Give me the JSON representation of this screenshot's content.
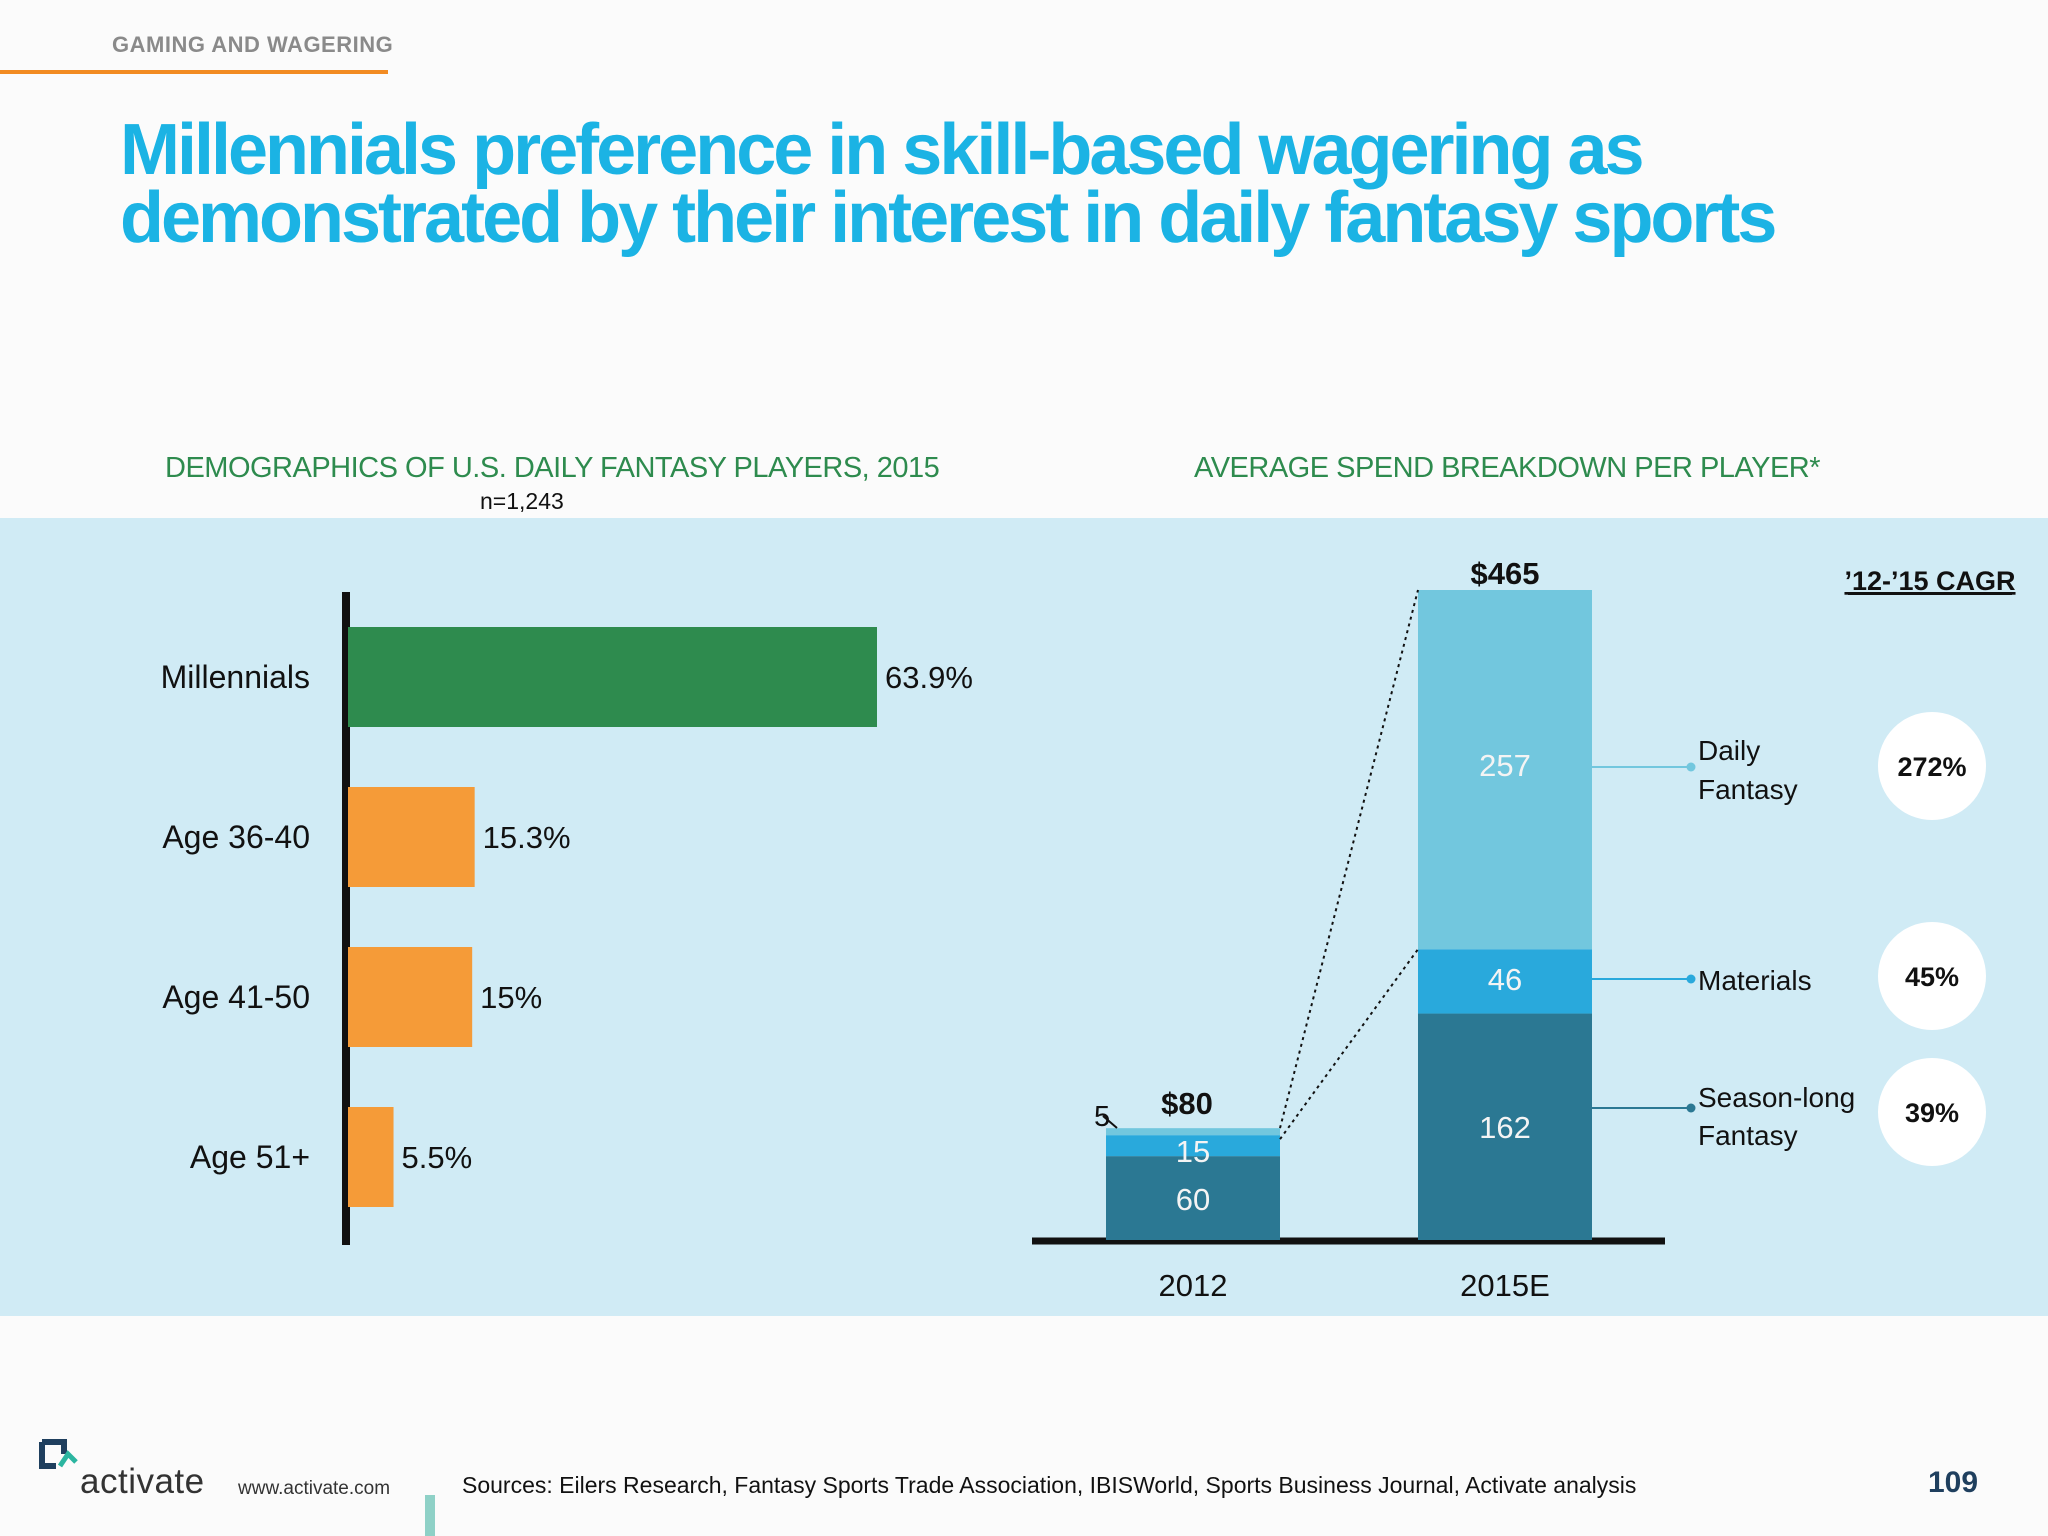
{
  "header": {
    "section_tag": "GAMING AND WAGERING",
    "title": "Millennials preference in skill-based wagering as demonstrated by their interest in daily fantasy sports"
  },
  "colors": {
    "title": "#1bb3e4",
    "accent_orange": "#f59b38",
    "accent_green": "#2e8b4e",
    "panel_bg": "#d0ebf5",
    "daily_fantasy": "#72c7de",
    "materials": "#29a9dc",
    "season_long": "#2b7893"
  },
  "chart_data": [
    {
      "type": "bar",
      "orientation": "horizontal",
      "title": "DEMOGRAPHICS OF U.S. DAILY FANTASY PLAYERS, 2015",
      "subtitle": "n=1,243",
      "categories": [
        "Millennials",
        "Age 36-40",
        "Age 41-50",
        "Age 51+"
      ],
      "values": [
        63.9,
        15.3,
        15,
        5.5
      ],
      "value_labels": [
        "63.9%",
        "15.3%",
        "15%",
        "5.5%"
      ],
      "bar_colors": [
        "#2e8b4e",
        "#f59b38",
        "#f59b38",
        "#f59b38"
      ],
      "xlim": [
        0,
        100
      ],
      "grid": false
    },
    {
      "type": "bar",
      "stacked": true,
      "title": "AVERAGE SPEND BREAKDOWN PER PLAYER*",
      "categories": [
        "2012",
        "2015E"
      ],
      "totals": [
        80,
        465
      ],
      "total_labels": [
        "$80",
        "$465"
      ],
      "series": [
        {
          "name": "Season-long Fantasy",
          "values": [
            60,
            162
          ],
          "color": "#2b7893",
          "cagr": "39%"
        },
        {
          "name": "Materials",
          "values": [
            15,
            46
          ],
          "color": "#29a9dc",
          "cagr": "45%"
        },
        {
          "name": "Daily Fantasy",
          "values": [
            5,
            257
          ],
          "color": "#72c7de",
          "cagr": "272%"
        }
      ],
      "legend_title": "’12-’15 CAGR",
      "legend_placement": "right",
      "grid": false
    }
  ],
  "legend_labels": {
    "daily_fantasy": [
      "Daily",
      "Fantasy"
    ],
    "materials": [
      "Materials"
    ],
    "season_long": [
      "Season-long",
      "Fantasy"
    ]
  },
  "footer": {
    "logo_text": "activate",
    "url": "www.activate.com",
    "sources": "Sources: Eilers Research, Fantasy Sports Trade Association, IBISWorld, Sports Business Journal, Activate analysis",
    "page_number": "109"
  }
}
